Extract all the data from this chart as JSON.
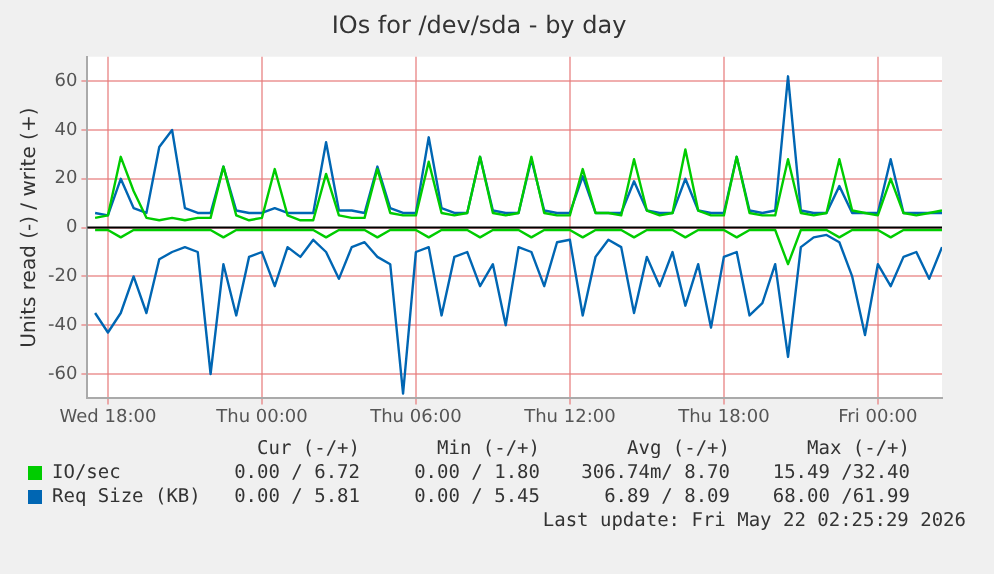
{
  "chart_data": {
    "type": "line",
    "title": "IOs for /dev/sda - by day",
    "ylabel": "Units read (-) / write (+)",
    "x": [
      "2026-05-20T17:30",
      "2026-05-20T18:00",
      "2026-05-20T18:30",
      "2026-05-20T19:00",
      "2026-05-20T19:30",
      "2026-05-20T20:00",
      "2026-05-20T20:30",
      "2026-05-20T21:00",
      "2026-05-20T21:30",
      "2026-05-20T22:00",
      "2026-05-20T22:30",
      "2026-05-20T23:00",
      "2026-05-20T23:30",
      "2026-05-21T00:00",
      "2026-05-21T00:30",
      "2026-05-21T01:00",
      "2026-05-21T01:30",
      "2026-05-21T02:00",
      "2026-05-21T02:30",
      "2026-05-21T03:00",
      "2026-05-21T03:30",
      "2026-05-21T04:00",
      "2026-05-21T04:30",
      "2026-05-21T05:00",
      "2026-05-21T05:30",
      "2026-05-21T06:00",
      "2026-05-21T06:30",
      "2026-05-21T07:00",
      "2026-05-21T07:30",
      "2026-05-21T08:00",
      "2026-05-21T08:30",
      "2026-05-21T09:00",
      "2026-05-21T09:30",
      "2026-05-21T10:00",
      "2026-05-21T10:30",
      "2026-05-21T11:00",
      "2026-05-21T11:30",
      "2026-05-21T12:00",
      "2026-05-21T12:30",
      "2026-05-21T13:00",
      "2026-05-21T13:30",
      "2026-05-21T14:00",
      "2026-05-21T14:30",
      "2026-05-21T15:00",
      "2026-05-21T15:30",
      "2026-05-21T16:00",
      "2026-05-21T16:30",
      "2026-05-21T17:00",
      "2026-05-21T17:30",
      "2026-05-21T18:00",
      "2026-05-21T18:30",
      "2026-05-21T19:00",
      "2026-05-21T19:30",
      "2026-05-21T20:00",
      "2026-05-21T20:30",
      "2026-05-21T21:00",
      "2026-05-21T21:30",
      "2026-05-21T22:00",
      "2026-05-21T22:30",
      "2026-05-21T23:00",
      "2026-05-21T23:30",
      "2026-05-22T00:00",
      "2026-05-22T00:30",
      "2026-05-22T01:00",
      "2026-05-22T01:30",
      "2026-05-22T02:00",
      "2026-05-22T02:30"
    ],
    "series": [
      {
        "color": "#00cc00",
        "values": [
          -1,
          -1,
          -4,
          -1,
          -1,
          -1,
          -1,
          -1,
          -1,
          -1,
          -4,
          -1,
          -1,
          -1,
          -1,
          -1,
          -1,
          -1,
          -4,
          -1,
          -1,
          -1,
          -4,
          -1,
          -1,
          -1,
          -4,
          -1,
          -1,
          -1,
          -4,
          -1,
          -1,
          -1,
          -4,
          -1,
          -1,
          -1,
          -4,
          -1,
          -1,
          -1,
          -4,
          -1,
          -1,
          -1,
          -4,
          -1,
          -1,
          -1,
          -4,
          -1,
          -1,
          -1,
          -15,
          -1,
          -1,
          -1,
          -4,
          -1,
          -1,
          -1,
          -4,
          -1,
          -1,
          -1,
          -1
        ]
      },
      {
        "color": "#0066b3",
        "values": [
          -35,
          -43,
          -35,
          -20,
          -35,
          -13,
          -10,
          -8,
          -10,
          -60,
          -15,
          -36,
          -12,
          -10,
          -24,
          -8,
          -12,
          -5,
          -10,
          -21,
          -8,
          -6,
          -12,
          -15,
          -68,
          -10,
          -8,
          -36,
          -12,
          -10,
          -24,
          -15,
          -40,
          -8,
          -10,
          -24,
          -6,
          -5,
          -36,
          -12,
          -5,
          -8,
          -35,
          -12,
          -24,
          -10,
          -32,
          -15,
          -41,
          -12,
          -10,
          -36,
          -31,
          -15,
          -53,
          -8,
          -4,
          -3,
          -6,
          -20,
          -44,
          -15,
          -24,
          -12,
          -10,
          -21,
          -8
        ]
      },
      {
        "name": "IO/sec",
        "color": "#00cc00",
        "values": [
          4,
          5,
          29,
          15,
          4,
          3,
          4,
          3,
          4,
          4,
          25,
          5,
          3,
          4,
          24,
          5,
          3,
          3,
          22,
          5,
          4,
          4,
          24,
          6,
          5,
          5,
          27,
          6,
          5,
          6,
          29,
          6,
          5,
          6,
          29,
          6,
          5,
          5,
          24,
          6,
          6,
          5,
          28,
          7,
          5,
          6,
          32,
          7,
          5,
          5,
          29,
          6,
          5,
          5,
          28,
          6,
          5,
          6,
          28,
          7,
          6,
          5,
          20,
          6,
          5,
          6,
          7
        ]
      },
      {
        "name": "Req Size (KB)",
        "color": "#0066b3",
        "values": [
          6,
          5,
          20,
          8,
          6,
          33,
          40,
          8,
          6,
          6,
          25,
          7,
          6,
          6,
          8,
          6,
          6,
          6,
          35,
          7,
          7,
          6,
          25,
          8,
          6,
          6,
          37,
          8,
          6,
          6,
          29,
          7,
          6,
          6,
          28,
          7,
          6,
          6,
          21,
          6,
          6,
          6,
          19,
          7,
          6,
          6,
          20,
          7,
          6,
          6,
          29,
          7,
          6,
          7,
          62,
          7,
          6,
          6,
          17,
          6,
          6,
          6,
          28,
          6,
          6,
          6,
          6
        ]
      }
    ],
    "xlim": [
      "2026-05-20T17:12",
      "2026-05-22T02:30"
    ],
    "xticks": [
      {
        "value": "2026-05-20T18:00",
        "label": "Wed 18:00"
      },
      {
        "value": "2026-05-21T00:00",
        "label": "Thu 00:00"
      },
      {
        "value": "2026-05-21T06:00",
        "label": "Thu 06:00"
      },
      {
        "value": "2026-05-21T12:00",
        "label": "Thu 12:00"
      },
      {
        "value": "2026-05-21T18:00",
        "label": "Thu 18:00"
      },
      {
        "value": "2026-05-22T00:00",
        "label": "Fri 00:00"
      }
    ],
    "ylim": [
      -70,
      70
    ],
    "yticks": [
      -60,
      -40,
      -20,
      0,
      20,
      40,
      60
    ],
    "grid": true,
    "legend": "bottom",
    "marker": "none",
    "line_style": "solid",
    "annotations": [
      "Cur (-/+)",
      "Min (-/+)",
      "Avg (-/+)",
      "Max (-/+)",
      "0.00 / 6.72",
      "0.00 / 1.80",
      "306.74m/ 8.70",
      "15.49 /32.40",
      "0.00 / 5.81",
      "0.00 / 5.45",
      "6.89 / 8.09",
      "68.00 /61.99",
      "Last update: Fri May 22 02:25:29 2026"
    ]
  }
}
